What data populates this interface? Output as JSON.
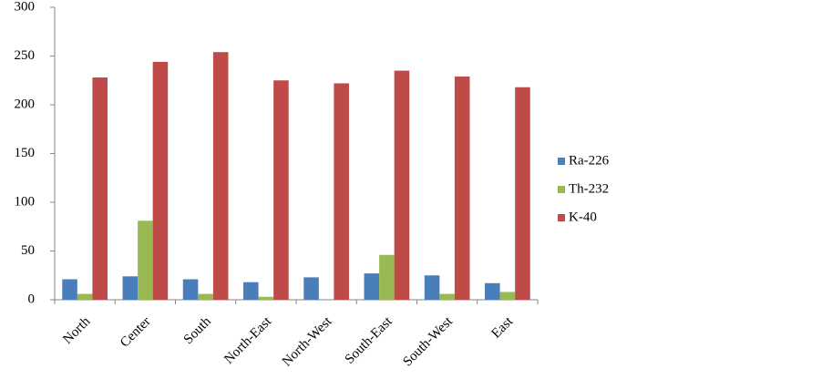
{
  "chart_data": {
    "type": "bar",
    "categories": [
      "North",
      "Center",
      "South",
      "North-East",
      "North-West",
      "South-East",
      "South-West",
      "East"
    ],
    "series": [
      {
        "name": "Ra-226",
        "color": "#4a7ebb",
        "values": [
          21,
          24,
          21,
          18,
          23,
          27,
          25,
          17
        ]
      },
      {
        "name": "Th-232",
        "color": "#98b954",
        "values": [
          6,
          81,
          6,
          3,
          0,
          46,
          6,
          8
        ]
      },
      {
        "name": "K-40",
        "color": "#be4b48",
        "values": [
          228,
          244,
          254,
          225,
          222,
          235,
          229,
          218
        ]
      }
    ],
    "ylim": [
      0,
      300
    ],
    "yticks": [
      0,
      50,
      100,
      150,
      200,
      250,
      300
    ],
    "grid": false,
    "legend": "right"
  }
}
